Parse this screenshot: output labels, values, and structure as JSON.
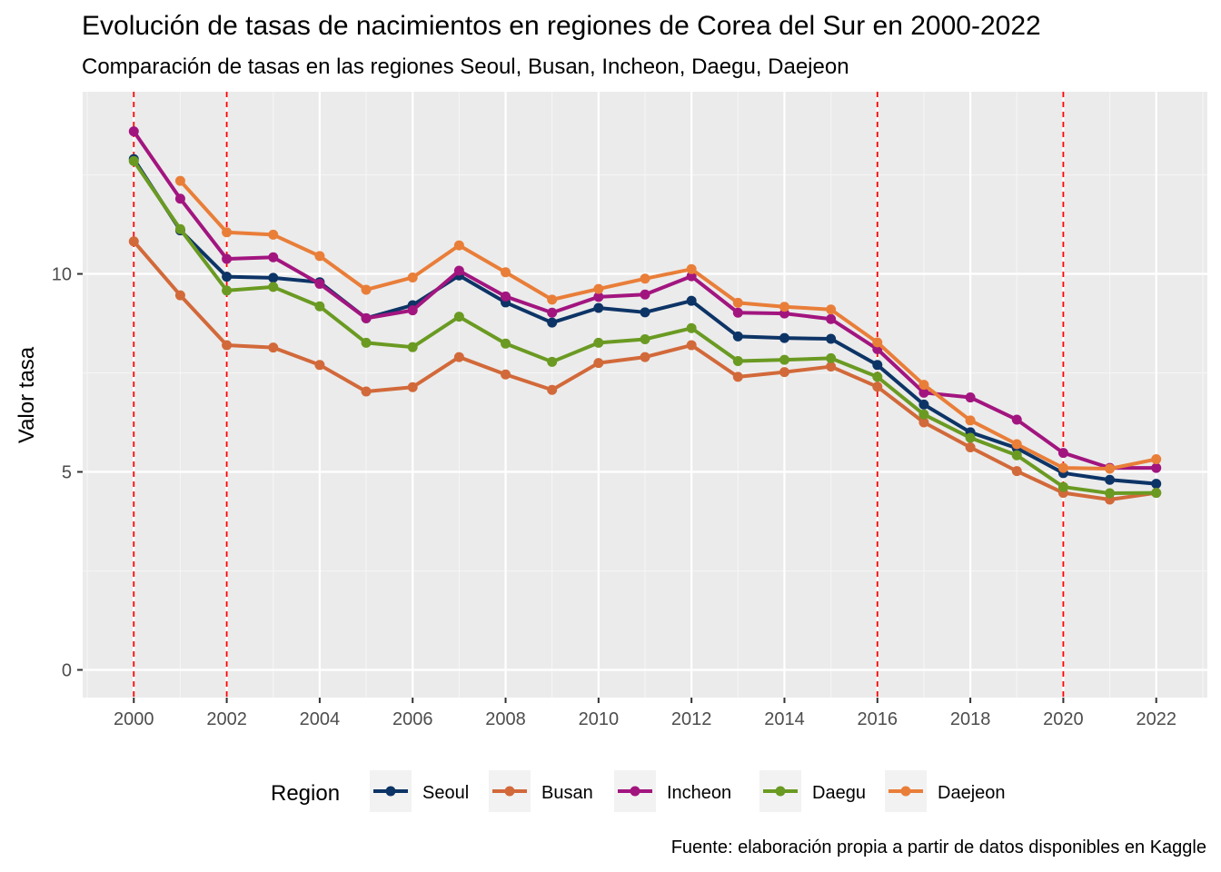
{
  "title": "Evolución de tasas de nacimientos en regiones de Corea del Sur en 2000-2022",
  "subtitle": "Comparación de  tasas en las regiones Seoul, Busan, Incheon, Daegu, Daejeon",
  "caption": "Fuente: elaboración propia a partir de datos disponibles en Kaggle",
  "chart_data": {
    "type": "line",
    "xlabel": "",
    "ylabel": "Valor tasa",
    "xlim": [
      1998.9,
      2023.1
    ],
    "ylim": [
      -0.7,
      14.6
    ],
    "x_ticks": [
      2000,
      2002,
      2004,
      2006,
      2008,
      2010,
      2012,
      2014,
      2016,
      2018,
      2020,
      2022
    ],
    "y_ticks": [
      0,
      5,
      10
    ],
    "vlines": [
      2000,
      2002,
      2016,
      2020
    ],
    "vline_color": "#ff0000",
    "panel_background": "#ebebeb",
    "grid": true,
    "legend": {
      "title": "Region",
      "position": "bottom"
    },
    "x": [
      2000,
      2001,
      2002,
      2003,
      2004,
      2005,
      2006,
      2007,
      2008,
      2009,
      2010,
      2011,
      2012,
      2013,
      2014,
      2015,
      2016,
      2017,
      2018,
      2019,
      2020,
      2021,
      2022
    ],
    "series": [
      {
        "name": "Seoul",
        "color": "#0d3466",
        "values": [
          12.9,
          11.1,
          9.93,
          9.9,
          9.79,
          8.88,
          9.21,
          9.96,
          9.28,
          8.77,
          9.14,
          9.03,
          9.32,
          8.42,
          8.38,
          8.36,
          7.7,
          6.7,
          6.0,
          5.6,
          4.97,
          4.8,
          4.7
        ]
      },
      {
        "name": "Busan",
        "color": "#d2693a",
        "values": [
          10.82,
          9.46,
          8.2,
          8.14,
          7.7,
          7.03,
          7.14,
          7.9,
          7.46,
          7.07,
          7.75,
          7.9,
          8.2,
          7.4,
          7.52,
          7.66,
          7.15,
          6.25,
          5.62,
          5.02,
          4.47,
          4.3,
          4.47
        ]
      },
      {
        "name": "Incheon",
        "color": "#a2157f",
        "values": [
          13.6,
          11.9,
          10.38,
          10.42,
          9.75,
          8.88,
          9.08,
          10.08,
          9.43,
          9.02,
          9.42,
          9.48,
          9.94,
          9.02,
          9.0,
          8.86,
          8.1,
          7.0,
          6.88,
          6.32,
          5.48,
          5.1,
          5.1
        ]
      },
      {
        "name": "Daegu",
        "color": "#6a9a22",
        "values": [
          12.85,
          11.13,
          9.58,
          9.67,
          9.18,
          8.26,
          8.15,
          8.92,
          8.24,
          7.78,
          8.26,
          8.35,
          8.63,
          7.8,
          7.83,
          7.87,
          7.4,
          6.45,
          5.86,
          5.42,
          4.62,
          4.46,
          4.47
        ]
      },
      {
        "name": "Daejeon",
        "color": "#e97e39",
        "values": [
          null,
          12.35,
          11.05,
          10.99,
          10.45,
          9.6,
          9.91,
          10.72,
          10.04,
          9.35,
          9.62,
          9.88,
          10.12,
          9.27,
          9.17,
          9.1,
          8.27,
          7.2,
          6.3,
          5.7,
          5.1,
          5.08,
          5.32
        ]
      }
    ]
  }
}
